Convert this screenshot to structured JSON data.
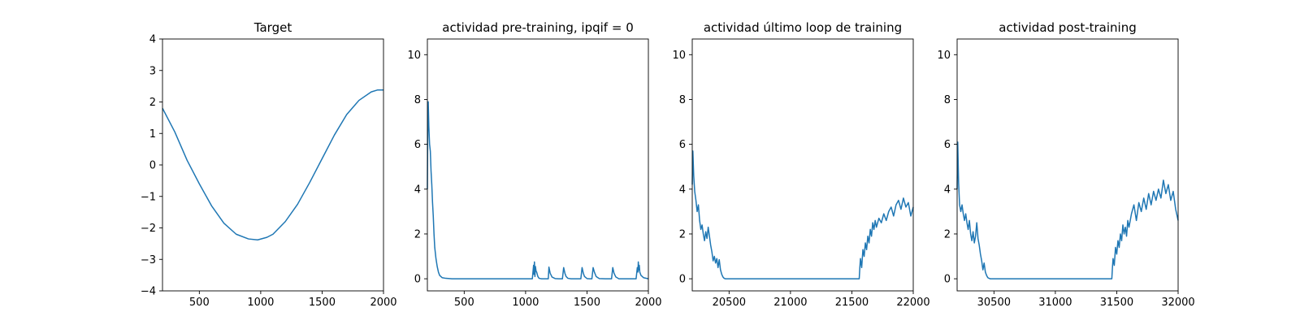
{
  "chart_data": [
    {
      "type": "line",
      "title": "Target",
      "xlim": [
        200,
        2000
      ],
      "ylim": [
        -4,
        4
      ],
      "xticks": [
        500,
        1000,
        1500,
        2000
      ],
      "yticks": [
        -4,
        -3,
        -2,
        -1,
        0,
        1,
        2,
        3,
        4
      ],
      "xticklabels": [
        "500",
        "1000",
        "1500",
        "2000"
      ],
      "yticklabels": [
        "−4",
        "−3",
        "−2",
        "−1",
        "0",
        "1",
        "2",
        "3",
        "4"
      ],
      "series": [
        {
          "color": "#1f77b4",
          "x": [
            200,
            300,
            400,
            500,
            600,
            700,
            800,
            900,
            975,
            1050,
            1100,
            1200,
            1300,
            1400,
            1500,
            1600,
            1700,
            1800,
            1900,
            1950,
            2000
          ],
          "y": [
            1.8,
            1.05,
            0.15,
            -0.6,
            -1.3,
            -1.85,
            -2.2,
            -2.35,
            -2.38,
            -2.3,
            -2.2,
            -1.8,
            -1.25,
            -0.55,
            0.2,
            0.95,
            1.6,
            2.05,
            2.32,
            2.38,
            2.38
          ]
        }
      ]
    },
    {
      "type": "line",
      "title": "actividad pre-training, ipqif = 0",
      "xlim": [
        200,
        2000
      ],
      "ylim": [
        -0.54,
        10.7
      ],
      "xticks": [
        500,
        1000,
        1500,
        2000
      ],
      "yticks": [
        0,
        2,
        4,
        6,
        8,
        10
      ],
      "xticklabels": [
        "500",
        "1000",
        "1500",
        "2000"
      ],
      "yticklabels": [
        "0",
        "2",
        "4",
        "6",
        "8",
        "10"
      ],
      "series": [
        {
          "color": "#1f77b4",
          "x": [
            200,
            203,
            207,
            212,
            218,
            224,
            230,
            236,
            242,
            248,
            254,
            260,
            270,
            280,
            290,
            300,
            320,
            350,
            400,
            1055,
            1065,
            1068,
            1072,
            1076,
            1080,
            1085,
            1090,
            1095,
            1100,
            1110,
            1130,
            1150,
            1170,
            1185,
            1190,
            1200,
            1215,
            1240,
            1270,
            1300,
            1310,
            1320,
            1330,
            1345,
            1370,
            1400,
            1450,
            1460,
            1470,
            1480,
            1500,
            1520,
            1540,
            1550,
            1560,
            1575,
            1600,
            1650,
            1700,
            1710,
            1720,
            1735,
            1760,
            1800,
            1900,
            1910,
            1915,
            1918,
            1922,
            1926,
            1930,
            1940,
            1960,
            2000
          ],
          "y": [
            4.0,
            6.5,
            7.9,
            6.8,
            6.0,
            5.7,
            4.8,
            4.2,
            3.4,
            2.8,
            2.0,
            1.4,
            0.9,
            0.55,
            0.3,
            0.15,
            0.05,
            0.02,
            0.0,
            0.0,
            0.6,
            0.2,
            0.75,
            0.1,
            0.55,
            0.35,
            0.3,
            0.2,
            0.1,
            0.02,
            0.0,
            0.0,
            0.0,
            0.0,
            0.52,
            0.25,
            0.08,
            0.01,
            0.0,
            0.0,
            0.5,
            0.25,
            0.1,
            0.02,
            0.0,
            0.0,
            0.0,
            0.5,
            0.25,
            0.1,
            0.01,
            0.0,
            0.0,
            0.5,
            0.3,
            0.1,
            0.01,
            0.0,
            0.0,
            0.5,
            0.25,
            0.08,
            0.0,
            0.0,
            0.0,
            0.5,
            0.3,
            0.75,
            0.4,
            0.6,
            0.3,
            0.15,
            0.05,
            0.0
          ]
        }
      ]
    },
    {
      "type": "line",
      "title": "actividad último loop de training",
      "xlim": [
        20200,
        22000
      ],
      "ylim": [
        -0.54,
        10.7
      ],
      "xticks": [
        20500,
        21000,
        21500,
        22000
      ],
      "yticks": [
        0,
        2,
        4,
        6,
        8,
        10
      ],
      "xticklabels": [
        "20500",
        "21000",
        "21500",
        "22000"
      ],
      "yticklabels": [
        "0",
        "2",
        "4",
        "6",
        "8",
        "10"
      ],
      "series": [
        {
          "color": "#1f77b4",
          "x": [
            20200,
            20205,
            20212,
            20220,
            20230,
            20240,
            20250,
            20260,
            20270,
            20280,
            20290,
            20300,
            20310,
            20320,
            20330,
            20340,
            20350,
            20360,
            20370,
            20380,
            20390,
            20400,
            20410,
            20420,
            20430,
            20440,
            20450,
            20460,
            20470,
            20480,
            20490,
            20500,
            20550,
            20600,
            21000,
            21500,
            21560,
            21565,
            21570,
            21580,
            21590,
            21600,
            21610,
            21620,
            21630,
            21640,
            21650,
            21660,
            21670,
            21680,
            21690,
            21700,
            21720,
            21740,
            21760,
            21780,
            21800,
            21820,
            21840,
            21860,
            21880,
            21900,
            21920,
            21940,
            21960,
            21980,
            22000
          ],
          "y": [
            4.2,
            5.7,
            4.6,
            3.9,
            3.5,
            3.0,
            3.3,
            2.6,
            2.2,
            2.4,
            2.0,
            1.7,
            2.1,
            1.8,
            2.3,
            1.9,
            1.5,
            1.2,
            0.8,
            1.0,
            0.7,
            0.9,
            0.5,
            0.85,
            0.4,
            0.2,
            0.08,
            0.02,
            0.0,
            0.0,
            0.0,
            0.0,
            0.0,
            0.0,
            0.0,
            0.0,
            0.0,
            0.5,
            0.9,
            0.5,
            1.3,
            1.0,
            1.6,
            1.3,
            1.9,
            1.6,
            2.2,
            1.9,
            2.5,
            2.2,
            2.6,
            2.3,
            2.7,
            2.5,
            2.9,
            2.6,
            3.0,
            3.2,
            2.8,
            3.3,
            3.5,
            3.1,
            3.6,
            3.2,
            3.4,
            2.8,
            3.2
          ]
        }
      ]
    },
    {
      "type": "line",
      "title": "actividad post-training",
      "xlim": [
        30200,
        32000
      ],
      "ylim": [
        -0.54,
        10.7
      ],
      "xticks": [
        30500,
        31000,
        31500,
        32000
      ],
      "yticks": [
        0,
        2,
        4,
        6,
        8,
        10
      ],
      "xticklabels": [
        "30500",
        "31000",
        "31500",
        "32000"
      ],
      "yticklabels": [
        "0",
        "2",
        "4",
        "6",
        "8",
        "10"
      ],
      "series": [
        {
          "color": "#1f77b4",
          "x": [
            30200,
            30205,
            30212,
            30220,
            30230,
            30240,
            30250,
            30260,
            30270,
            30280,
            30290,
            30300,
            30310,
            30320,
            30330,
            30340,
            30350,
            30360,
            30370,
            30380,
            30390,
            30400,
            30410,
            30420,
            30430,
            30440,
            30450,
            30460,
            30470,
            30480,
            30500,
            30550,
            31000,
            31400,
            31460,
            31465,
            31470,
            31480,
            31490,
            31500,
            31510,
            31520,
            31530,
            31540,
            31550,
            31560,
            31570,
            31580,
            31590,
            31600,
            31620,
            31640,
            31660,
            31680,
            31700,
            31720,
            31740,
            31760,
            31780,
            31800,
            31820,
            31840,
            31860,
            31880,
            31900,
            31920,
            31940,
            31960,
            31980,
            32000
          ],
          "y": [
            4.0,
            6.1,
            4.3,
            3.3,
            3.0,
            3.3,
            2.9,
            2.6,
            2.9,
            2.5,
            2.2,
            2.6,
            2.0,
            1.7,
            2.1,
            1.6,
            1.9,
            2.5,
            1.8,
            1.5,
            1.1,
            0.8,
            0.4,
            0.7,
            0.3,
            0.15,
            0.05,
            0.02,
            0.0,
            0.0,
            0.0,
            0.0,
            0.0,
            0.0,
            0.0,
            0.5,
            0.9,
            0.6,
            1.4,
            1.1,
            1.7,
            1.4,
            2.0,
            1.7,
            2.4,
            2.0,
            2.3,
            1.9,
            2.6,
            2.3,
            2.9,
            3.3,
            2.6,
            3.4,
            3.0,
            3.6,
            3.1,
            3.8,
            3.3,
            3.9,
            3.5,
            4.0,
            3.6,
            4.4,
            3.8,
            4.2,
            3.5,
            3.9,
            3.1,
            2.6
          ]
        }
      ]
    }
  ]
}
